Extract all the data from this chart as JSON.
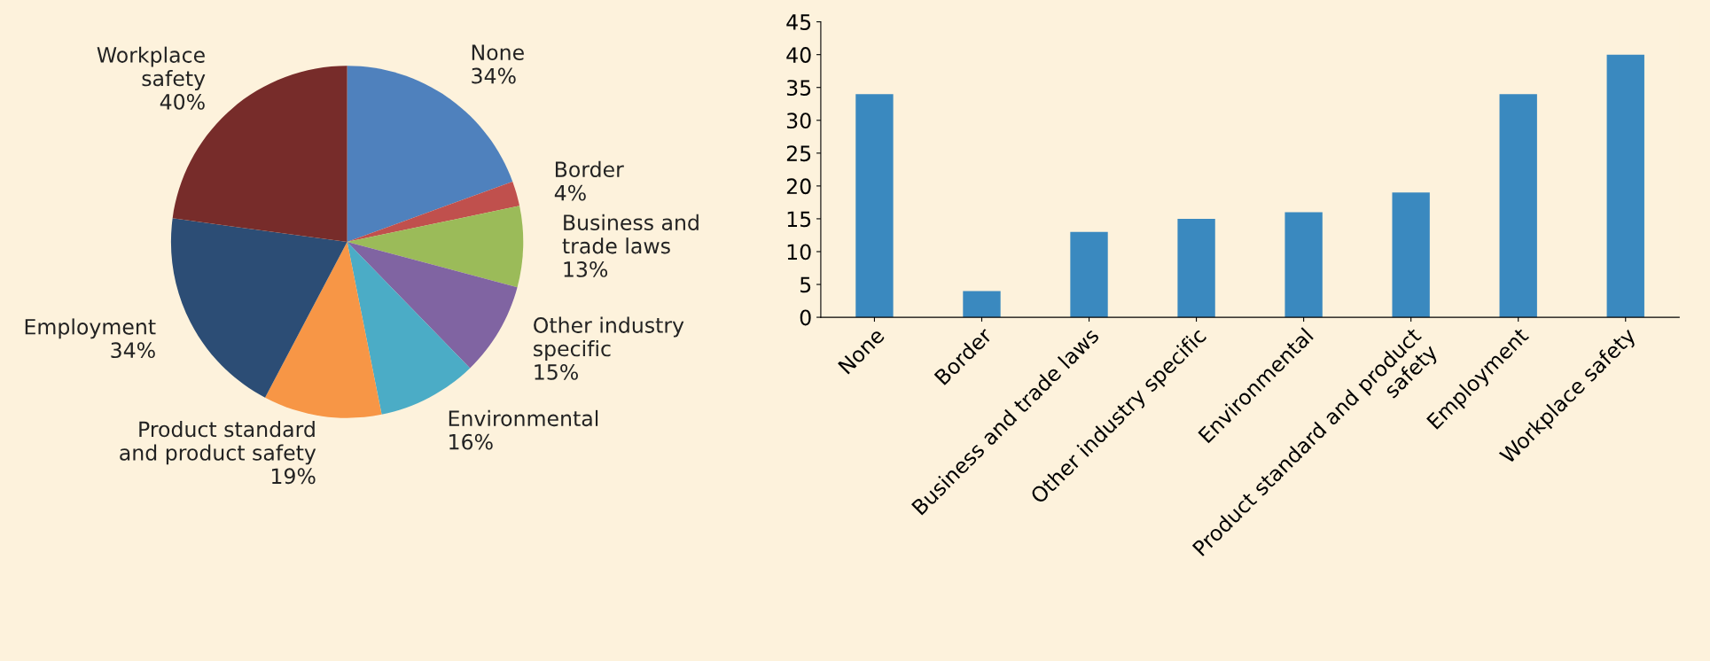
{
  "chart_data": [
    {
      "type": "pie",
      "categories": [
        "None",
        "Border",
        "Business and\ntrade laws",
        "Other industry\nspecific",
        "Environmental",
        "Product standard\nand product safety",
        "Employment",
        "Workplace\nsafety"
      ],
      "values": [
        34,
        4,
        13,
        15,
        16,
        19,
        34,
        40
      ],
      "value_labels": [
        "34%",
        "4%",
        "13%",
        "15%",
        "16%",
        "19%",
        "34%",
        "40%"
      ],
      "colors": [
        "#4f81bd",
        "#c0504d",
        "#9bbb59",
        "#8064a2",
        "#4bacc6",
        "#f79646",
        "#2c4d75",
        "#772c2a"
      ]
    },
    {
      "type": "bar",
      "categories": [
        "None",
        "Border",
        "Business and trade laws",
        "Other industry specific",
        "Environmental",
        "Product standard and product\nsafety",
        "Employment",
        "Workplace safety"
      ],
      "values": [
        34,
        4,
        13,
        15,
        16,
        19,
        34,
        40
      ],
      "color": "#3a89bf",
      "ylim": [
        0,
        45
      ],
      "yticks": [
        0,
        5,
        10,
        15,
        20,
        25,
        30,
        35,
        40,
        45
      ],
      "grid": false
    }
  ]
}
